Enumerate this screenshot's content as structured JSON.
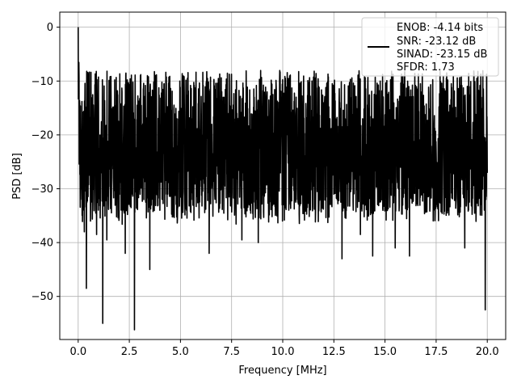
{
  "chart_data": {
    "type": "line",
    "title": "",
    "xlabel": "Frequency [MHz]",
    "ylabel": "PSD [dB]",
    "xlim": [
      -0.9,
      20.9
    ],
    "ylim": [
      -58.0,
      2.8
    ],
    "xticks": [
      0.0,
      2.5,
      5.0,
      7.5,
      10.0,
      12.5,
      15.0,
      17.5,
      20.0
    ],
    "xtick_labels": [
      "0.0",
      "2.5",
      "5.0",
      "7.5",
      "10.0",
      "12.5",
      "15.0",
      "17.5",
      "20.0"
    ],
    "yticks": [
      0,
      -10,
      -20,
      -30,
      -40,
      -50
    ],
    "ytick_labels": [
      "0",
      "−10",
      "−20",
      "−30",
      "−40",
      "−50"
    ],
    "grid": true,
    "legend_position": "top-right",
    "legend_lines": [
      "ENOB: -4.14 bits",
      "SNR: -23.12 dB",
      "SINAD: -23.15 dB",
      "SFDR: 1.73"
    ],
    "series": [
      {
        "color": "#000000",
        "x_start": 0.0,
        "x_end": 20.0,
        "peak": [
          0.0,
          0.0
        ],
        "min_floor": -56.2,
        "dips": [
          [
            0.3,
            -38.0
          ],
          [
            0.4,
            -48.5
          ],
          [
            0.6,
            -36.0
          ],
          [
            0.9,
            -38.5
          ],
          [
            1.2,
            -55.0
          ],
          [
            1.4,
            -39.5
          ],
          [
            2.3,
            -42.0
          ],
          [
            2.75,
            -56.2
          ],
          [
            3.5,
            -45.0
          ],
          [
            6.4,
            -42.0
          ],
          [
            8.0,
            -39.5
          ],
          [
            8.8,
            -40.0
          ],
          [
            12.9,
            -43.0
          ],
          [
            13.8,
            -38.5
          ],
          [
            14.4,
            -42.5
          ],
          [
            15.5,
            -41.0
          ],
          [
            16.2,
            -42.5
          ],
          [
            18.9,
            -41.0
          ],
          [
            19.9,
            -52.5
          ]
        ],
        "top_envelope_db": -8.0,
        "lower_envelope_db": -33.0
      }
    ]
  }
}
